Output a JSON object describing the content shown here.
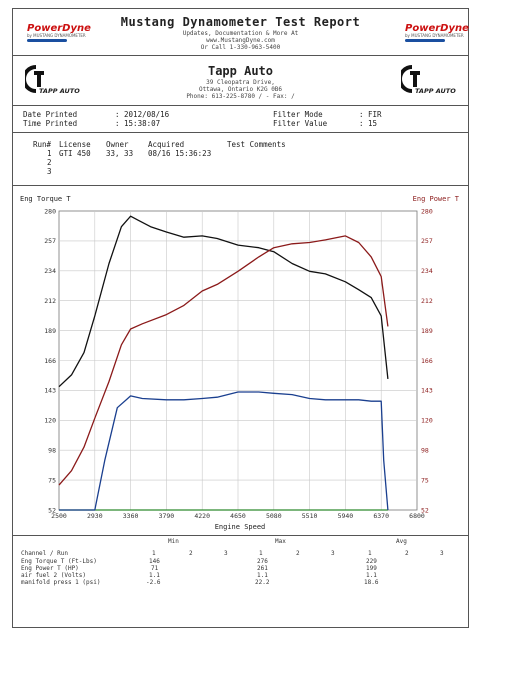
{
  "report": {
    "title": "Mustang Dynamometer Test Report",
    "header_lines": [
      "Updates, Documentation & More At",
      "www.MustangDyne.com",
      "Or Call 1-330-963-5400"
    ],
    "brand_left": "PowerDyne",
    "brand_right": "PowerDyne",
    "brand_sub": "by MUSTANG DYNAMOMETER"
  },
  "shop": {
    "name": "Tapp Auto",
    "address_lines": [
      "39 Cleopatra Drive,",
      "Ottawa, Ontario  K2G 0B6",
      "Phone: 613-225-8780 / -  Fax: /"
    ],
    "logo_text": "TAPP AUTO"
  },
  "fields": {
    "date_printed_label": "Date Printed",
    "date_printed_value": ": 2012/08/16",
    "time_printed_label": "Time Printed",
    "time_printed_value": ": 15:38:07",
    "filter_mode_label": "Filter Mode",
    "filter_mode_value": ": FIR",
    "filter_value_label": "Filter Value",
    "filter_value_value": ": 15"
  },
  "runs": {
    "headers": [
      "Run#",
      "License",
      "Owner",
      "Acquired",
      "Test Comments"
    ],
    "rows": [
      {
        "run": "1",
        "license": "GTI 450",
        "owner": "33, 33",
        "acquired": "08/16 15:36:23",
        "comments": ""
      },
      {
        "run": "2",
        "license": "",
        "owner": "",
        "acquired": "",
        "comments": ""
      },
      {
        "run": "3",
        "license": "",
        "owner": "",
        "acquired": "",
        "comments": ""
      }
    ]
  },
  "chart_data": {
    "type": "line",
    "xlabel": "Engine Speed",
    "ylabel_left": "Eng Torque T",
    "ylabel_right": "Eng Power T",
    "xlim": [
      2500,
      6800
    ],
    "ylim_left": [
      52,
      280
    ],
    "ylim_right": [
      52,
      280
    ],
    "x_ticks": [
      "2500",
      "2930",
      "3360",
      "3790",
      "4220",
      "4650",
      "5080",
      "5510",
      "5940",
      "6370",
      "6800"
    ],
    "y_ticks_left": [
      "280",
      "257",
      "234",
      "212",
      "189",
      "166",
      "143",
      "120",
      "98",
      "75",
      "52"
    ],
    "y_ticks_right": [
      "280",
      "257",
      "234",
      "212",
      "189",
      "166",
      "143",
      "120",
      "98",
      "75",
      "52"
    ],
    "grid": true,
    "series": [
      {
        "name": "Eng Torque T",
        "axis": "left",
        "color": "#111111",
        "x": [
          2500,
          2650,
          2800,
          2930,
          3100,
          3250,
          3360,
          3450,
          3600,
          3790,
          4000,
          4220,
          4400,
          4650,
          4900,
          5080,
          5300,
          5510,
          5700,
          5940,
          6100,
          6250,
          6370,
          6450
        ],
        "y": [
          146,
          155,
          172,
          200,
          240,
          268,
          276,
          273,
          268,
          264,
          260,
          261,
          259,
          254,
          252,
          249,
          240,
          234,
          232,
          226,
          220,
          214,
          200,
          152
        ]
      },
      {
        "name": "Eng Power T",
        "axis": "right",
        "color": "#8b1a1a",
        "x": [
          2500,
          2650,
          2800,
          2930,
          3100,
          3250,
          3360,
          3500,
          3790,
          4000,
          4220,
          4400,
          4650,
          4900,
          5080,
          5300,
          5510,
          5700,
          5940,
          6100,
          6250,
          6370,
          6450
        ],
        "y": [
          71,
          82,
          100,
          122,
          150,
          178,
          190,
          194,
          201,
          208,
          219,
          224,
          234,
          245,
          252,
          255,
          256,
          258,
          261,
          256,
          245,
          230,
          192
        ]
      },
      {
        "name": "air fuel 2 (Volts)",
        "axis": "left",
        "color": "#2e8b2e",
        "x": [
          2500,
          6450
        ],
        "y": [
          52,
          52
        ]
      },
      {
        "name": "manifold press 1 (psi)",
        "axis": "left",
        "color": "#1a3f8f",
        "x": [
          2500,
          2930,
          3050,
          3200,
          3360,
          3500,
          3790,
          4000,
          4220,
          4400,
          4650,
          4900,
          5080,
          5300,
          5510,
          5700,
          5940,
          6100,
          6250,
          6370,
          6400,
          6450
        ],
        "y": [
          52,
          52,
          90,
          130,
          139,
          137,
          136,
          136,
          137,
          138,
          142,
          142,
          141,
          140,
          137,
          136,
          136,
          136,
          135,
          135,
          90,
          52
        ]
      }
    ]
  },
  "summary": {
    "group_headers": [
      "Min",
      "Max",
      "Avg"
    ],
    "run_header": "Channel / Run",
    "run_numbers": [
      "1",
      "2",
      "3"
    ],
    "rows": [
      {
        "label": "Eng Torque T (Ft-Lbs)",
        "min": "146",
        "max": "276",
        "avg": "229"
      },
      {
        "label": "Eng Power T (HP)",
        "min": "71",
        "max": "261",
        "avg": "199"
      },
      {
        "label": "air fuel 2 (Volts)",
        "min": "1.1",
        "max": "1.1",
        "avg": "1.1"
      },
      {
        "label": "manifold press 1 (psi)",
        "min": "-2.6",
        "max": "22.2",
        "avg": "18.6"
      }
    ]
  }
}
